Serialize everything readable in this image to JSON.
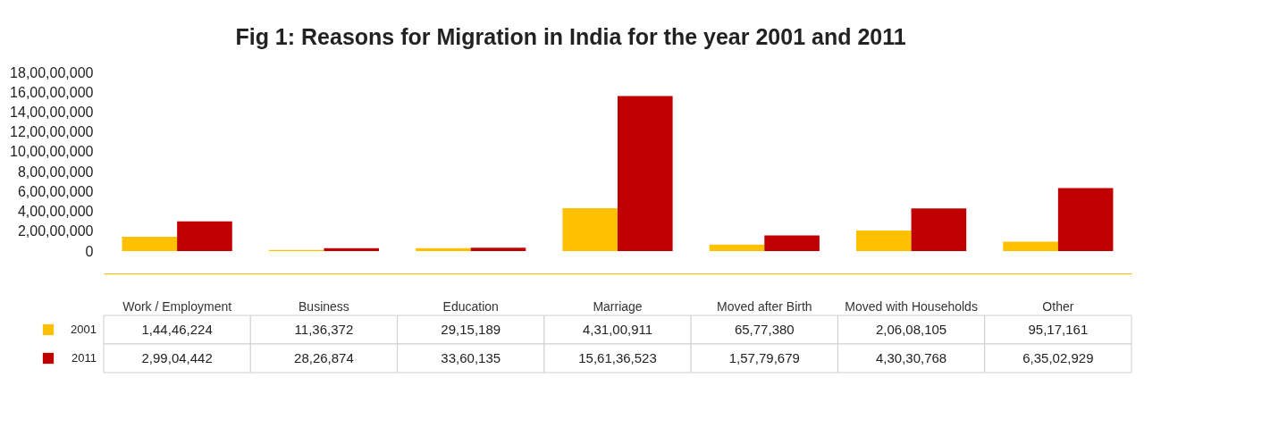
{
  "chart_data": {
    "type": "bar",
    "title": "Fig 1: Reasons for Migration in India for the year 2001 and 2011",
    "categories": [
      "Work / Employment",
      "Business",
      "Education",
      "Marriage",
      "Moved after Birth",
      "Moved with Households",
      "Other"
    ],
    "series": [
      {
        "name": "2001",
        "color": "#ffc000",
        "values": [
          14446224,
          1136372,
          2915189,
          43100911,
          6577380,
          20608105,
          9517161
        ],
        "value_labels": [
          "1,44,46,224",
          "11,36,372",
          "29,15,189",
          "4,31,00,911",
          "65,77,380",
          "2,06,08,105",
          "95,17,161"
        ]
      },
      {
        "name": "2011",
        "color": "#c00000",
        "values": [
          29904442,
          2826874,
          3360135,
          156136523,
          15779679,
          43030768,
          63502929
        ],
        "value_labels": [
          "2,99,04,442",
          "28,26,874",
          "33,60,135",
          "15,61,36,523",
          "1,57,79,679",
          "4,30,30,768",
          "6,35,02,929"
        ]
      }
    ],
    "ylim": [
      0,
      180000000
    ],
    "yticks": [
      0,
      {
        "value": 20000000,
        "label": "2,00,00,000"
      },
      {
        "value": 40000000,
        "label": "4,00,00,000"
      },
      {
        "value": 60000000,
        "label": "6,00,00,000"
      },
      {
        "value": 80000000,
        "label": "8,00,00,000"
      },
      {
        "value": 100000000,
        "label": "10,00,00,000"
      },
      {
        "value": 120000000,
        "label": "12,00,00,000"
      },
      {
        "value": 140000000,
        "label": "14,00,00,000"
      },
      {
        "value": 160000000,
        "label": "16,00,00,000"
      },
      {
        "value": 180000000,
        "label": "18,00,00,000"
      }
    ],
    "legend": "bottom left",
    "grid": false
  }
}
